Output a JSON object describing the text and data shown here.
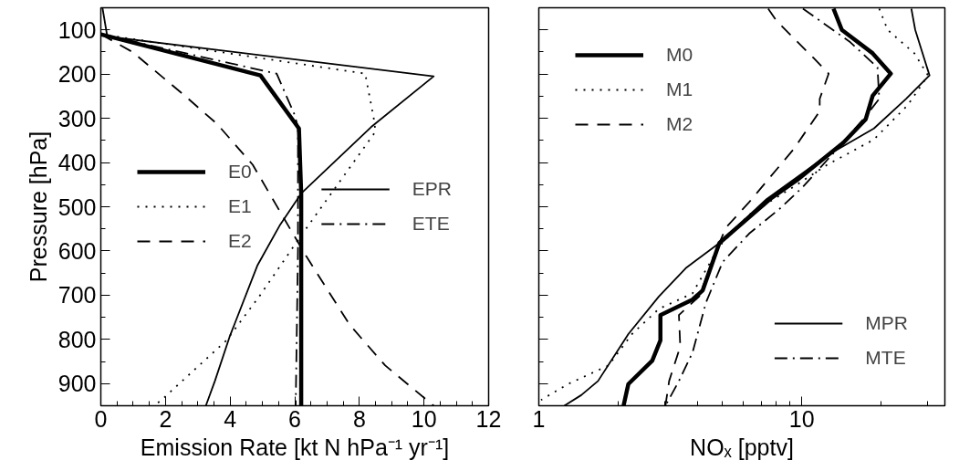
{
  "chart_data": [
    {
      "type": "line",
      "xlabel": "Emission Rate [kt N hPa⁻¹ yr⁻¹]",
      "ylabel": "Pressure [hPa]",
      "xlim": [
        0,
        12
      ],
      "xticks": [
        0,
        2,
        4,
        6,
        8,
        10,
        12
      ],
      "ylim": [
        950,
        50
      ],
      "yticks": [
        100,
        200,
        300,
        400,
        500,
        600,
        700,
        800,
        900
      ],
      "grid": false,
      "legend": "left",
      "tick_labels": [
        "x",
        "y"
      ],
      "series": [
        {
          "name": "E0",
          "color": "#000000",
          "line_style": "solid",
          "x": [
            0,
            4.94,
            6.13,
            6.2,
            6.2
          ],
          "values": [
            110,
            203,
            323,
            470,
            950
          ]
        },
        {
          "name": "E1",
          "color": "#000000",
          "line_style": "dotted",
          "x": [
            0,
            8.18,
            8.45,
            8.5,
            6.17,
            4.9,
            3.89,
            1.98,
            1.66
          ],
          "values": [
            110,
            199,
            302,
            330,
            568,
            703,
            802,
            930,
            950
          ]
        },
        {
          "name": "E2",
          "color": "#000000",
          "line_style": "dashed",
          "x": [
            0,
            0.98,
            2.6,
            3.6,
            4.7,
            5.6,
            6.35,
            7.7,
            8.8,
            10.3
          ],
          "values": [
            110,
            150,
            249,
            313,
            405,
            518,
            611,
            767,
            859,
            950
          ]
        },
        {
          "name": "EPR",
          "color": "#000000",
          "line_style": "solid",
          "x": [
            0.05,
            0.2,
            10.3,
            8.36,
            6.2,
            5.53,
            4.85,
            3.98,
            3.53,
            3.25
          ],
          "values": [
            50,
            115,
            205,
            320,
            470,
            543,
            632,
            795,
            894,
            950
          ]
        },
        {
          "name": "ETE",
          "color": "#000000",
          "line_style": "dashdot",
          "x": [
            0,
            5.44,
            5.99,
            6.1,
            6.1,
            6.03
          ],
          "values": [
            110,
            199,
            291,
            320,
            600,
            950
          ]
        }
      ]
    },
    {
      "type": "line",
      "xlabel": "NOₓ [pptv]",
      "log": "x",
      "xlim": [
        1,
        35
      ],
      "xticks": [
        1,
        10
      ],
      "ylim": [
        950,
        50
      ],
      "yticks": [
        {
          "value": 100,
          "label": null
        },
        {
          "value": 200,
          "label": null
        },
        {
          "value": 300,
          "label": null
        },
        {
          "value": 400,
          "label": null
        },
        {
          "value": 500,
          "label": null
        },
        {
          "value": 600,
          "label": null
        },
        {
          "value": 700,
          "label": null
        },
        {
          "value": 800,
          "label": null
        },
        {
          "value": 900,
          "label": null
        }
      ],
      "grid": false,
      "legend": "top left",
      "tick_labels": "x",
      "series": [
        {
          "name": "M0",
          "color": "#000000",
          "line_style": "solid",
          "x": [
            13.2,
            14.2,
            18.6,
            21.8,
            18.6,
            17.5,
            14.4,
            9.57,
            7.56,
            4.86,
            4.2,
            3.84,
            2.9,
            2.9,
            2.7,
            2.19,
            2.1
          ],
          "values": [
            52,
            100,
            153,
            199,
            249,
            302,
            355,
            440,
            483,
            582,
            689,
            710,
            745,
            802,
            848,
            901,
            950
          ]
        },
        {
          "name": "M1",
          "color": "#000000",
          "line_style": "dotted",
          "x": [
            19.7,
            21.2,
            26.8,
            30.2,
            25.3,
            18.8,
            12.5,
            9.3,
            6.3,
            4.86,
            3.84,
            2.86,
            2.26,
            1.84,
            1.29,
            1.02
          ],
          "values": [
            52,
            100,
            153,
            203,
            270,
            348,
            405,
            455,
            518,
            589,
            696,
            731,
            788,
            859,
            901,
            937
          ]
        },
        {
          "name": "M2",
          "color": "#000000",
          "line_style": "dashed",
          "x": [
            7.45,
            8.0,
            11.1,
            12.65,
            11.7,
            11.7,
            9.3,
            6.3,
            5.15,
            4.86,
            4.07,
            3.41,
            3.45,
            3.13,
            3.03
          ],
          "values": [
            52,
            79,
            164,
            199,
            256,
            284,
            370,
            490,
            547,
            582,
            703,
            745,
            816,
            894,
            950
          ]
        },
        {
          "name": "MPR",
          "color": "#000000",
          "line_style": "solid",
          "x": [
            26.1,
            27.0,
            30.6,
            24.9,
            18.8,
            12.5,
            7.34,
            4.86,
            3.62,
            2.86,
            2.19,
            1.68,
            1.45,
            1.25
          ],
          "values": [
            52,
            100,
            203,
            256,
            323,
            384,
            483,
            582,
            639,
            703,
            788,
            894,
            926,
            950
          ]
        },
        {
          "name": "MTE",
          "color": "#000000",
          "line_style": "dashdot",
          "x": [
            10.1,
            15.3,
            19.4,
            19.7,
            17.3,
            13.6,
            10.1,
            8.26,
            6.3,
            5.0,
            4.32,
            3.84,
            3.41,
            3.03
          ],
          "values": [
            52,
            128,
            185,
            256,
            299,
            370,
            455,
            504,
            561,
            625,
            717,
            830,
            894,
            950
          ]
        }
      ]
    }
  ]
}
